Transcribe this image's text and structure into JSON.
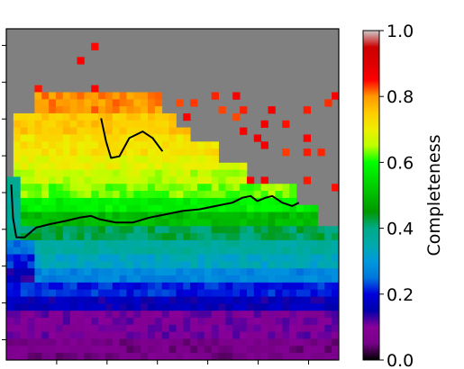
{
  "chart_data": {
    "type": "heatmap",
    "title": "",
    "xlabel": "",
    "ylabel": "",
    "background_color": "#808080",
    "colormap": "nipy_spectral",
    "colorbar": {
      "label": "Completeness",
      "range": [
        0.0,
        1.0
      ],
      "ticks": [
        0.0,
        0.2,
        0.4,
        0.6,
        0.8,
        1.0
      ],
      "tick_labels": [
        "0.0",
        "0.2",
        "0.4",
        "0.6",
        "0.8",
        "1.0"
      ]
    },
    "grid": {
      "columns": 47,
      "rows": 47
    },
    "x_tick_count": 6,
    "y_tick_count": 9,
    "value_bands": [
      {
        "row_range": [
          44,
          46
        ],
        "value": 0.06
      },
      {
        "row_range": [
          40,
          43
        ],
        "value": 0.1
      },
      {
        "row_range": [
          38,
          39
        ],
        "value": 0.16
      },
      {
        "row_range": [
          36,
          37
        ],
        "value": 0.21
      },
      {
        "row_range": [
          34,
          35
        ],
        "value": 0.27
      },
      {
        "row_range": [
          32,
          33
        ],
        "value": 0.33
      },
      {
        "row_range": [
          30,
          31
        ],
        "value": 0.37
      },
      {
        "row_range": [
          28,
          29
        ],
        "value": 0.42
      },
      {
        "row_range": [
          26,
          27
        ],
        "value": 0.5
      },
      {
        "row_range": [
          24,
          25
        ],
        "value": 0.58
      },
      {
        "row_range": [
          22,
          23
        ],
        "value": 0.63
      },
      {
        "row_range": [
          20,
          21
        ],
        "value": 0.66
      },
      {
        "row_range": [
          18,
          19
        ],
        "value": 0.69
      },
      {
        "row_range": [
          15,
          17
        ],
        "value": 0.72
      },
      {
        "row_range": [
          12,
          14
        ],
        "value": 0.75
      },
      {
        "row_range": [
          9,
          11
        ],
        "value": 0.8
      },
      {
        "row_range": [
          5,
          8
        ],
        "value": 0.86
      },
      {
        "row_range": [
          0,
          4
        ],
        "value": 0.88
      }
    ],
    "contour_line_lower": [
      [
        0.015,
        0.47
      ],
      [
        0.02,
        0.57
      ],
      [
        0.03,
        0.63
      ],
      [
        0.055,
        0.63
      ],
      [
        0.09,
        0.6
      ],
      [
        0.13,
        0.59
      ],
      [
        0.18,
        0.58
      ],
      [
        0.22,
        0.57
      ],
      [
        0.255,
        0.565
      ],
      [
        0.28,
        0.575
      ],
      [
        0.33,
        0.585
      ],
      [
        0.38,
        0.585
      ],
      [
        0.43,
        0.57
      ],
      [
        0.48,
        0.56
      ],
      [
        0.53,
        0.55
      ],
      [
        0.58,
        0.545
      ],
      [
        0.63,
        0.535
      ],
      [
        0.68,
        0.525
      ],
      [
        0.71,
        0.51
      ],
      [
        0.735,
        0.505
      ],
      [
        0.755,
        0.52
      ],
      [
        0.78,
        0.51
      ],
      [
        0.8,
        0.505
      ],
      [
        0.83,
        0.525
      ],
      [
        0.86,
        0.535
      ],
      [
        0.88,
        0.525
      ]
    ],
    "contour_line_upper": [
      [
        0.285,
        0.27
      ],
      [
        0.3,
        0.34
      ],
      [
        0.315,
        0.39
      ],
      [
        0.34,
        0.385
      ],
      [
        0.37,
        0.33
      ],
      [
        0.41,
        0.31
      ],
      [
        0.44,
        0.33
      ],
      [
        0.47,
        0.37
      ]
    ]
  }
}
